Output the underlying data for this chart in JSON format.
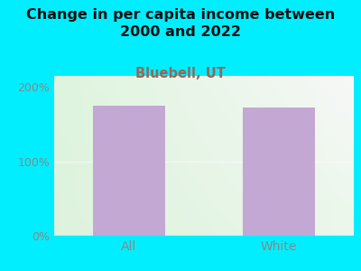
{
  "title": "Change in per capita income between\n2000 and 2022",
  "subtitle": "Bluebell, UT",
  "categories": [
    "All",
    "White"
  ],
  "values": [
    175,
    172
  ],
  "bar_color": "#c4a8d4",
  "title_fontsize": 11.5,
  "subtitle_fontsize": 10.5,
  "subtitle_color": "#996655",
  "title_color": "#111111",
  "bg_color": "#00eeff",
  "plot_bg_topleft": "#dff0df",
  "plot_bg_topright": "#f8f8f8",
  "plot_bg_bottomright": "#f0f8f0",
  "plot_bg_bottomleft": "#e8f4e8",
  "yticks": [
    0,
    100,
    200
  ],
  "ytick_labels": [
    "0%",
    "100%",
    "200%"
  ],
  "ylim": [
    0,
    215
  ],
  "tick_color": "#888888",
  "tick_fontsize": 9,
  "xlabel_fontsize": 10
}
